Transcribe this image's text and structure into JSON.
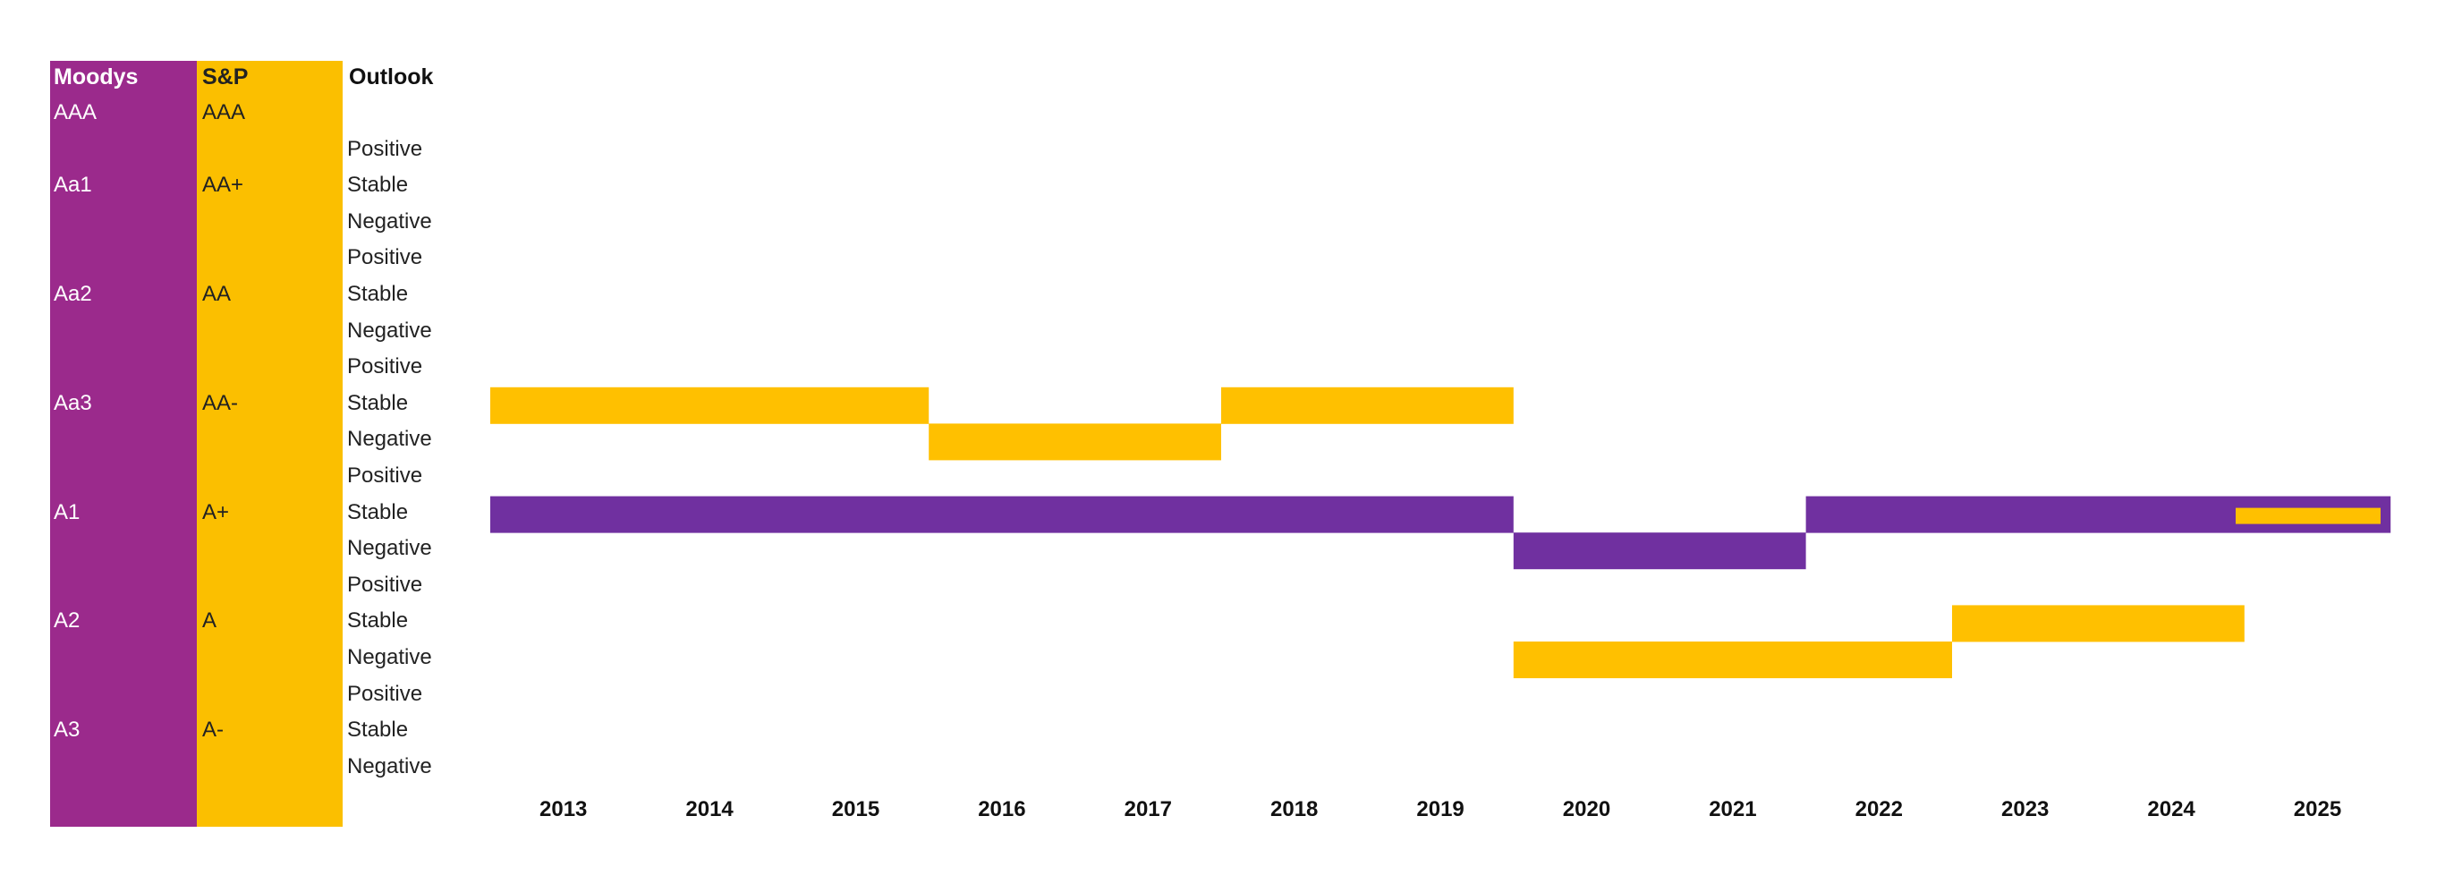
{
  "colors": {
    "moodys": "#9b2a8c",
    "sp": "#fbbf00",
    "moodys_bar": "#7030a0",
    "sp_bar": "#ffc000"
  },
  "table": {
    "headers": {
      "moodys": "Moodys",
      "sp": "S&P",
      "outlook": "Outlook"
    },
    "rows": [
      {
        "moodys": "AAA",
        "sp": "AAA",
        "outlook": ""
      },
      {
        "moodys": "",
        "sp": "",
        "outlook": "Positive"
      },
      {
        "moodys": "Aa1",
        "sp": "AA+",
        "outlook": "Stable"
      },
      {
        "moodys": "",
        "sp": "",
        "outlook": "Negative"
      },
      {
        "moodys": "",
        "sp": "",
        "outlook": "Positive"
      },
      {
        "moodys": "Aa2",
        "sp": "AA",
        "outlook": "Stable"
      },
      {
        "moodys": "",
        "sp": "",
        "outlook": "Negative"
      },
      {
        "moodys": "",
        "sp": "",
        "outlook": "Positive"
      },
      {
        "moodys": "Aa3",
        "sp": "AA-",
        "outlook": "Stable"
      },
      {
        "moodys": "",
        "sp": "",
        "outlook": "Negative"
      },
      {
        "moodys": "",
        "sp": "",
        "outlook": "Positive"
      },
      {
        "moodys": "A1",
        "sp": "A+",
        "outlook": "Stable"
      },
      {
        "moodys": "",
        "sp": "",
        "outlook": "Negative"
      },
      {
        "moodys": "",
        "sp": "",
        "outlook": "Positive"
      },
      {
        "moodys": "A2",
        "sp": "A",
        "outlook": "Stable"
      },
      {
        "moodys": "",
        "sp": "",
        "outlook": "Negative"
      },
      {
        "moodys": "",
        "sp": "",
        "outlook": "Positive"
      },
      {
        "moodys": "A3",
        "sp": "A-",
        "outlook": "Stable"
      },
      {
        "moodys": "",
        "sp": "",
        "outlook": "Negative"
      }
    ]
  },
  "chart_data": {
    "type": "step",
    "title": "",
    "xlabel": "",
    "ylabel": "",
    "x_categories": [
      "2013",
      "2014",
      "2015",
      "2016",
      "2017",
      "2018",
      "2019",
      "2020",
      "2021",
      "2022",
      "2023",
      "2024",
      "2025"
    ],
    "y_levels": [
      "AAA",
      "Aa1/AA+ Positive",
      "Aa1/AA+ Stable",
      "Aa1/AA+ Negative",
      "Aa2/AA Positive",
      "Aa2/AA Stable",
      "Aa2/AA Negative",
      "Aa3/AA- Positive",
      "Aa3/AA- Stable",
      "Aa3/AA- Negative",
      "A1/A+ Positive",
      "A1/A+ Stable",
      "A1/A+ Negative",
      "A2/A Positive",
      "A2/A Stable",
      "A2/A Negative",
      "A3/A- Positive",
      "A3/A- Stable",
      "A3/A- Negative"
    ],
    "series": [
      {
        "name": "",
        "color_key": "moodys_bar",
        "segments": [
          {
            "from": "2013",
            "to": "2019",
            "level": "A1/A+ Stable"
          },
          {
            "from": "2020",
            "to": "2021",
            "level": "A1/A+ Negative"
          },
          {
            "from": "2022",
            "to": "2025",
            "level": "A1/A+ Stable"
          }
        ]
      },
      {
        "name": "",
        "color_key": "sp_bar",
        "segments": [
          {
            "from": "2013",
            "to": "2015",
            "level": "Aa3/AA- Stable"
          },
          {
            "from": "2016",
            "to": "2017",
            "level": "Aa3/AA- Negative"
          },
          {
            "from": "2018",
            "to": "2019",
            "level": "Aa3/AA- Stable"
          },
          {
            "from": "2020",
            "to": "2022",
            "level": "A2/A Negative"
          },
          {
            "from": "2023",
            "to": "2024",
            "level": "A2/A Stable"
          },
          {
            "from": "2025",
            "to": "2025",
            "level": "A1/A+ Stable"
          }
        ]
      }
    ]
  }
}
